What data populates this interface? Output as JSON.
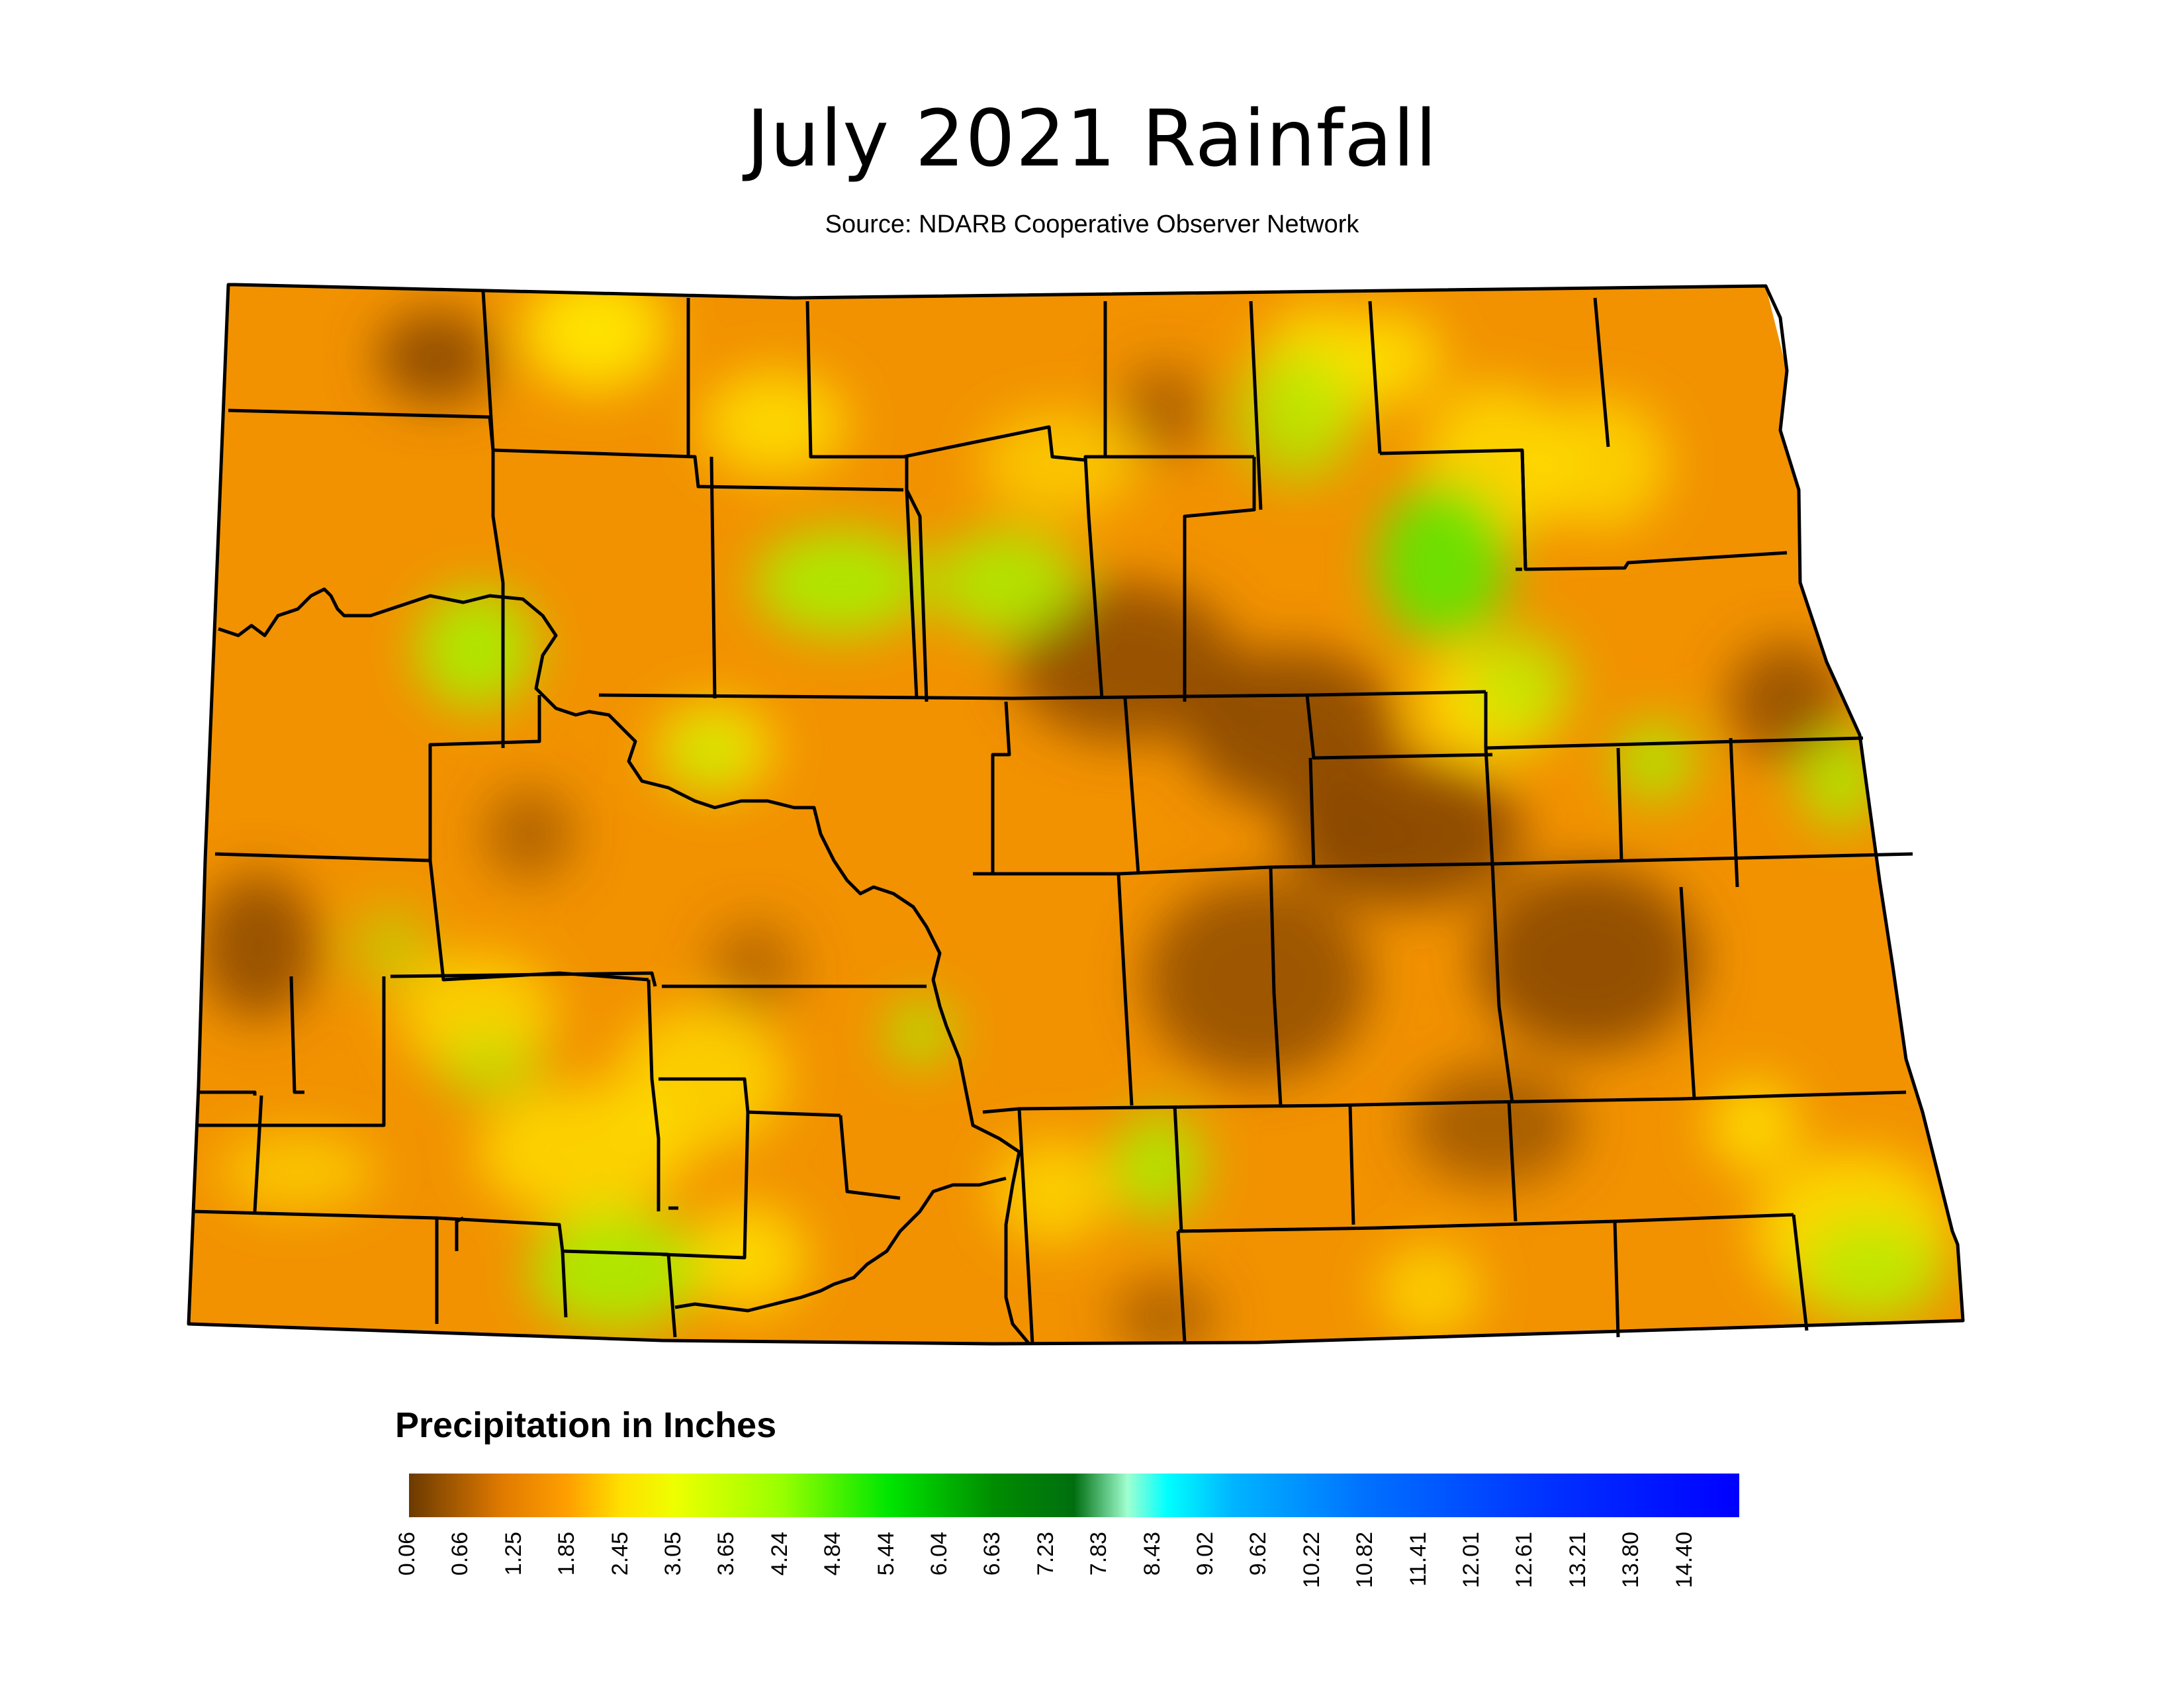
{
  "title": "July 2021 Rainfall",
  "subtitle": "Source: NDARB Cooperative Observer Network",
  "legend": {
    "title": "Precipitation in Inches",
    "ticks": [
      "0.06",
      "0.66",
      "1.25",
      "1.85",
      "2.45",
      "3.05",
      "3.65",
      "4.24",
      "4.84",
      "5.44",
      "6.04",
      "6.63",
      "7.23",
      "7.83",
      "8.43",
      "9.02",
      "9.62",
      "10.22",
      "10.82",
      "11.41",
      "12.01",
      "12.61",
      "13.21",
      "13.80",
      "14.40"
    ],
    "color_stops": [
      "#6b3a00",
      "#e07a00",
      "#ff9900",
      "#ffd200",
      "#ffff00",
      "#ccff00",
      "#88ff00",
      "#22dd00",
      "#00c800",
      "#007a00",
      "#00ffff",
      "#00aaff",
      "#0066ff",
      "#0033ff",
      "#0000ff"
    ]
  },
  "map_colors": {
    "base": "#f29200",
    "dark": "#8a4800",
    "yellow": "#ffe600",
    "green": "#a8f000",
    "bright_green": "#66e400",
    "boundary": "#000000"
  }
}
